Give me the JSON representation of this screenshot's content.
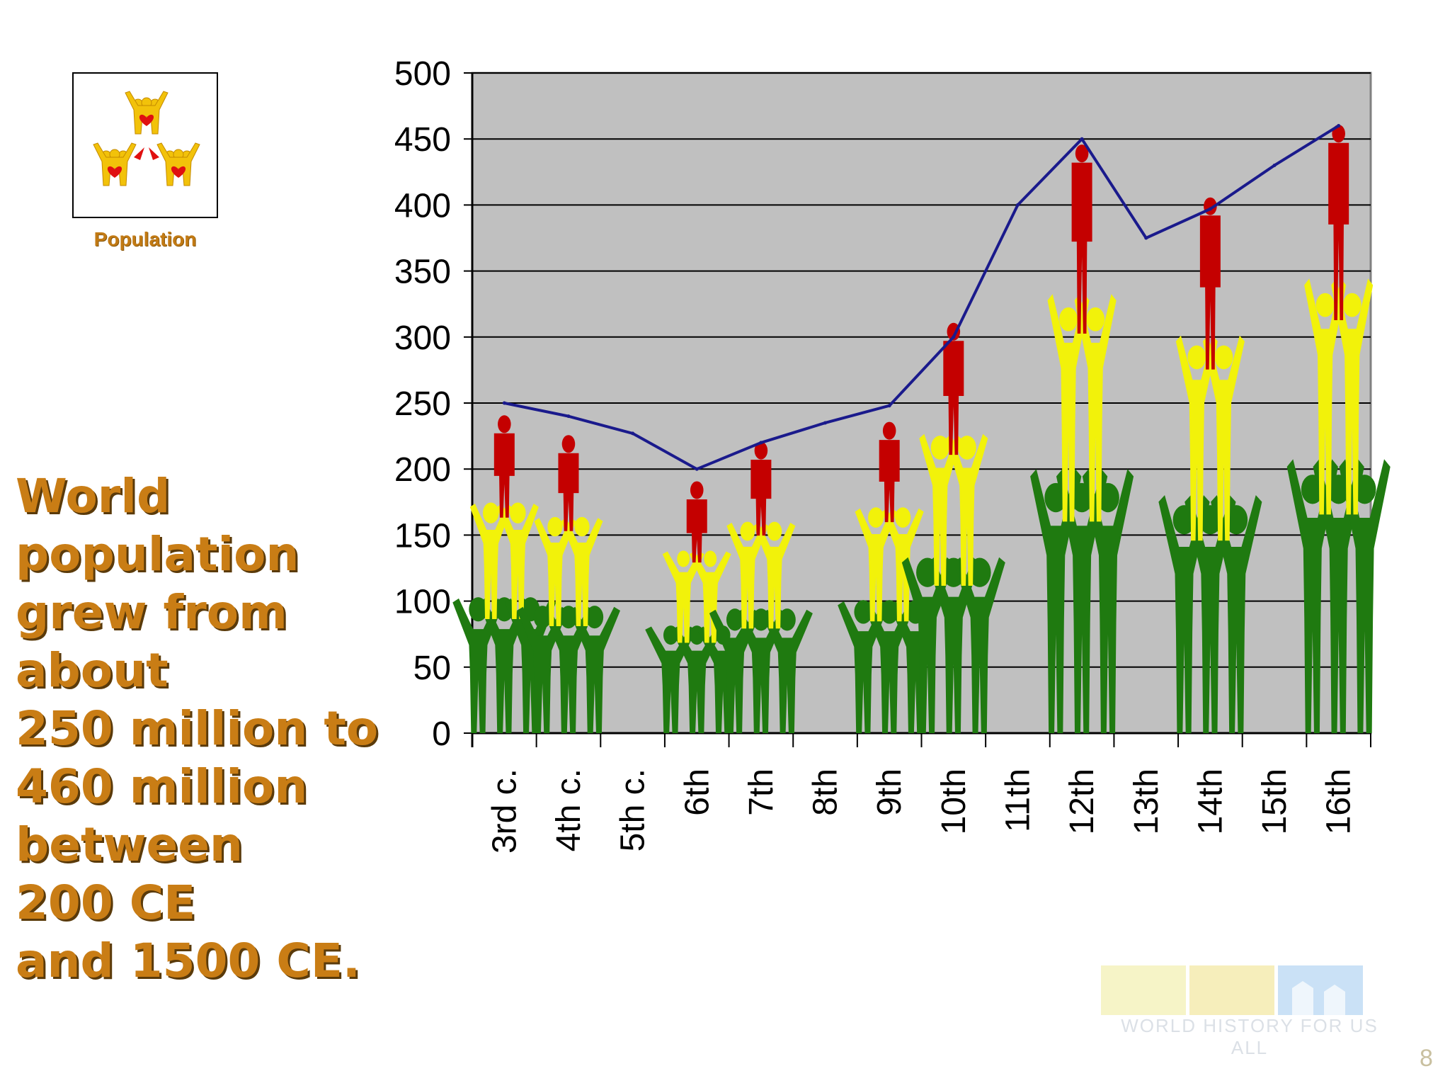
{
  "logo": {
    "label": "Population",
    "icon": "population-people-icon"
  },
  "headline": {
    "lines": [
      "World",
      "population",
      "grew from",
      "about",
      "250 million to",
      "460 million",
      "between",
      "200 CE",
      "and 1500 CE."
    ]
  },
  "watermark": {
    "text": "WORLD HISTORY FOR US ALL"
  },
  "page_number": "8",
  "colors": {
    "plot_bg": "#c0c0c0",
    "line": "#1a1a8c",
    "green_figures": "#1f7a10",
    "yellow_figures": "#f2f20a",
    "red_figures": "#c40000",
    "text_gold": "#c97d15"
  },
  "chart_data": {
    "type": "line",
    "title": "",
    "xlabel": "",
    "ylabel": "",
    "ylim": [
      0,
      500
    ],
    "yticks": [
      0,
      50,
      100,
      150,
      200,
      250,
      300,
      350,
      400,
      450,
      500
    ],
    "grid": true,
    "categories": [
      "3rd c.",
      "4th c.",
      "5th c.",
      "6th",
      "7th",
      "8th",
      "9th",
      "10th",
      "11th",
      "12th",
      "13th",
      "14th",
      "15th",
      "16th"
    ],
    "series": [
      {
        "values": [
          250,
          240,
          227,
          200,
          220,
          235,
          248,
          300,
          400,
          450,
          375,
          397,
          430,
          460
        ]
      }
    ],
    "pictograms": [
      {
        "category": "3rd c.",
        "top": 240
      },
      {
        "category": "4th c.",
        "top": 225
      },
      {
        "category": "6th",
        "top": 190
      },
      {
        "category": "7th",
        "top": 220
      },
      {
        "category": "9th",
        "top": 235
      },
      {
        "category": "10th",
        "top": 310
      },
      {
        "category": "12th",
        "top": 445
      },
      {
        "category": "14th",
        "top": 405
      },
      {
        "category": "16th",
        "top": 460
      }
    ]
  }
}
